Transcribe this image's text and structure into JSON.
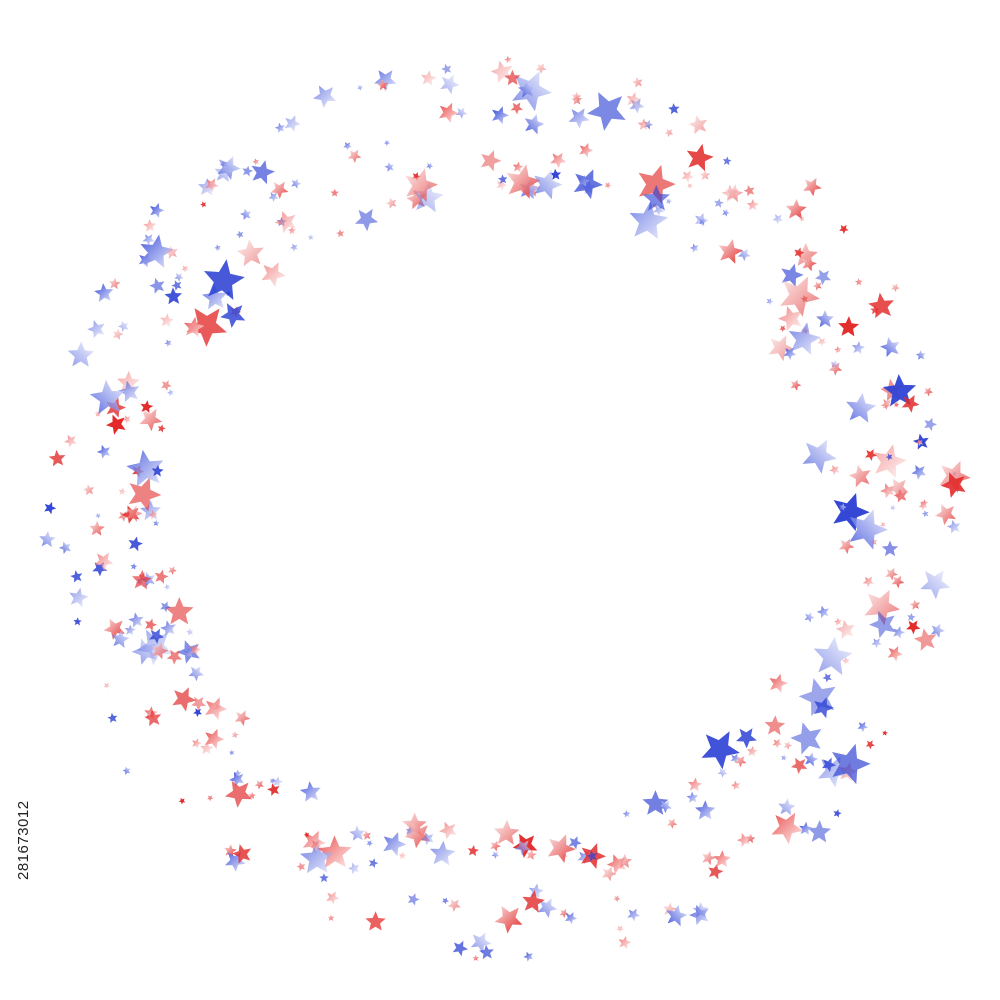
{
  "stock_id": "281673012"
}
